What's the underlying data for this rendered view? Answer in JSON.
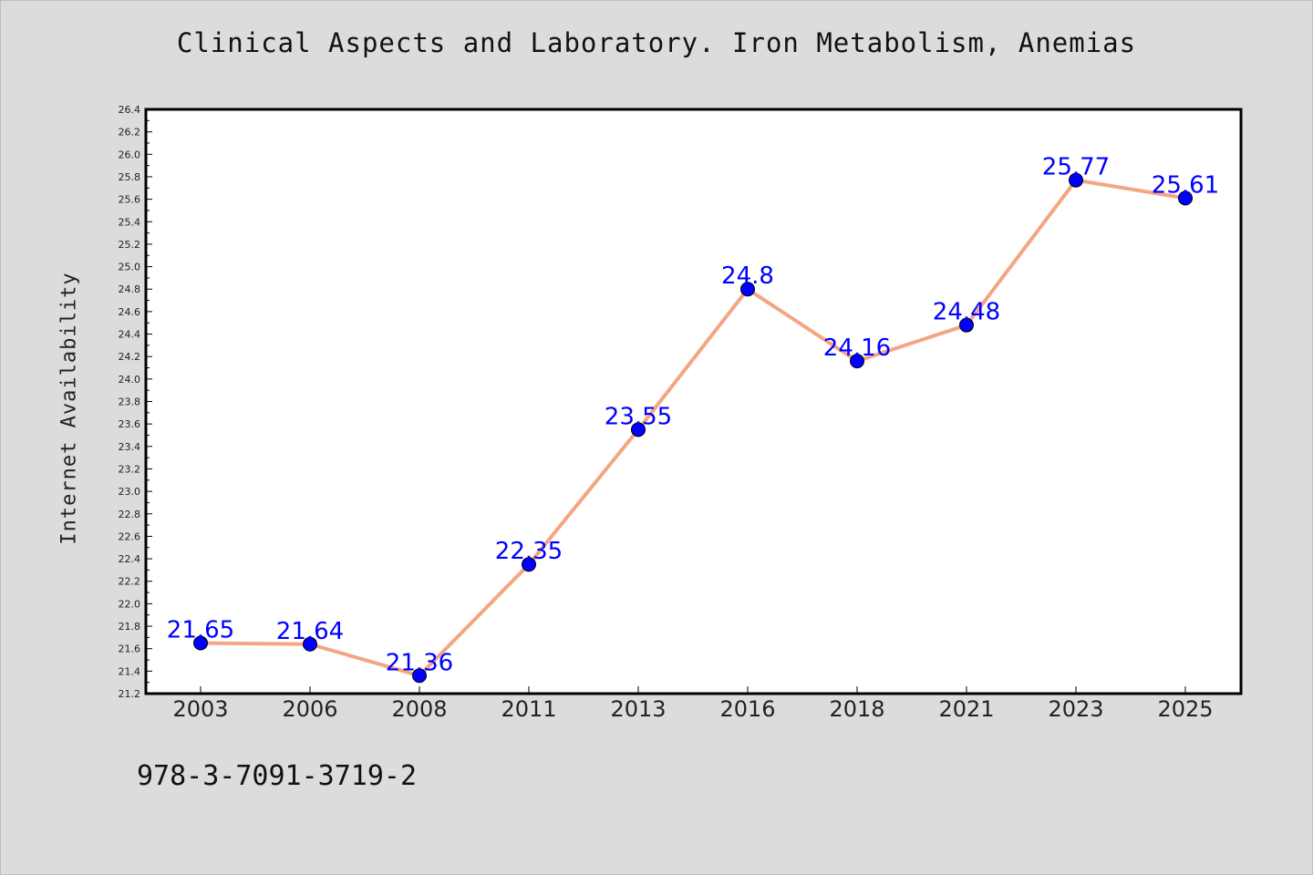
{
  "title": "Clinical Aspects and Laboratory. Iron Metabolism, Anemias",
  "footer_code": "978-3-7091-3719-2",
  "chart_data": {
    "type": "line",
    "title": "Clinical Aspects and Laboratory. Iron Metabolism, Anemias",
    "xlabel": "",
    "ylabel": "Internet Availability",
    "categories": [
      "2003",
      "2006",
      "2008",
      "2011",
      "2013",
      "2016",
      "2018",
      "2021",
      "2023",
      "2025"
    ],
    "series": [
      {
        "values": [
          21.65,
          21.64,
          21.36,
          22.35,
          23.55,
          24.8,
          24.16,
          24.48,
          25.77,
          25.61
        ],
        "labels": [
          "21.65",
          "21.64",
          "21.36",
          "22.35",
          "23.55",
          "24.8",
          "24.16",
          "24.48",
          "25.77",
          "25.61"
        ],
        "line_color": "#f4a582",
        "marker_color": "#0000ff"
      }
    ],
    "ylim": [
      21.2,
      26.4
    ],
    "ytick_step": 0.2,
    "grid": false,
    "legend": "none",
    "label_color": "#0000ff",
    "plot_background": "#ffffff",
    "page_background": "#dcdcdc"
  }
}
